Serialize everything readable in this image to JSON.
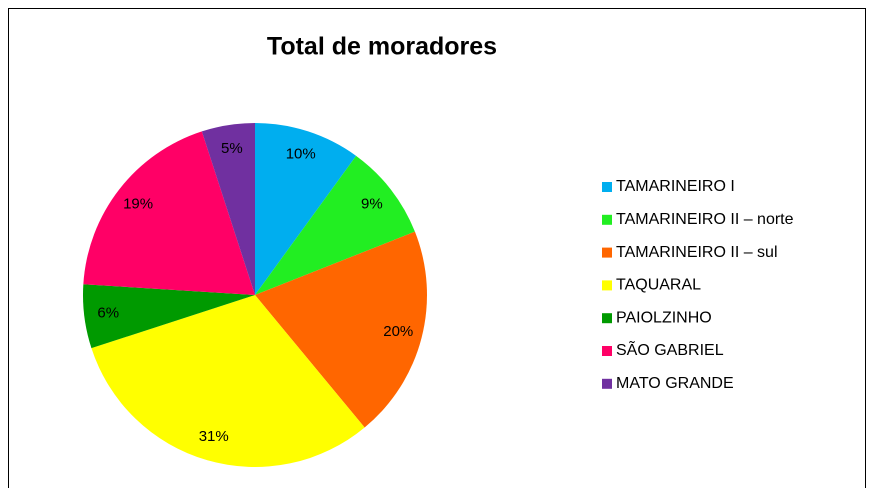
{
  "chart_data": {
    "type": "pie",
    "title": "Total de moradores",
    "categories": [
      "TAMARINEIRO I",
      "TAMARINEIRO II – norte",
      "TAMARINEIRO II – sul",
      "TAQUARAL",
      "PAIOLZINHO",
      "SÃO GABRIEL",
      "MATO GRANDE"
    ],
    "values": [
      10,
      9,
      20,
      31,
      6,
      19,
      5
    ],
    "value_labels": [
      "10%",
      "9%",
      "20%",
      "31%",
      "6%",
      "19%",
      "5%"
    ],
    "colors": [
      "#00aeef",
      "#22ee22",
      "#ff6600",
      "#ffff00",
      "#009a00",
      "#ff0066",
      "#7030a0"
    ],
    "legend": "right"
  }
}
